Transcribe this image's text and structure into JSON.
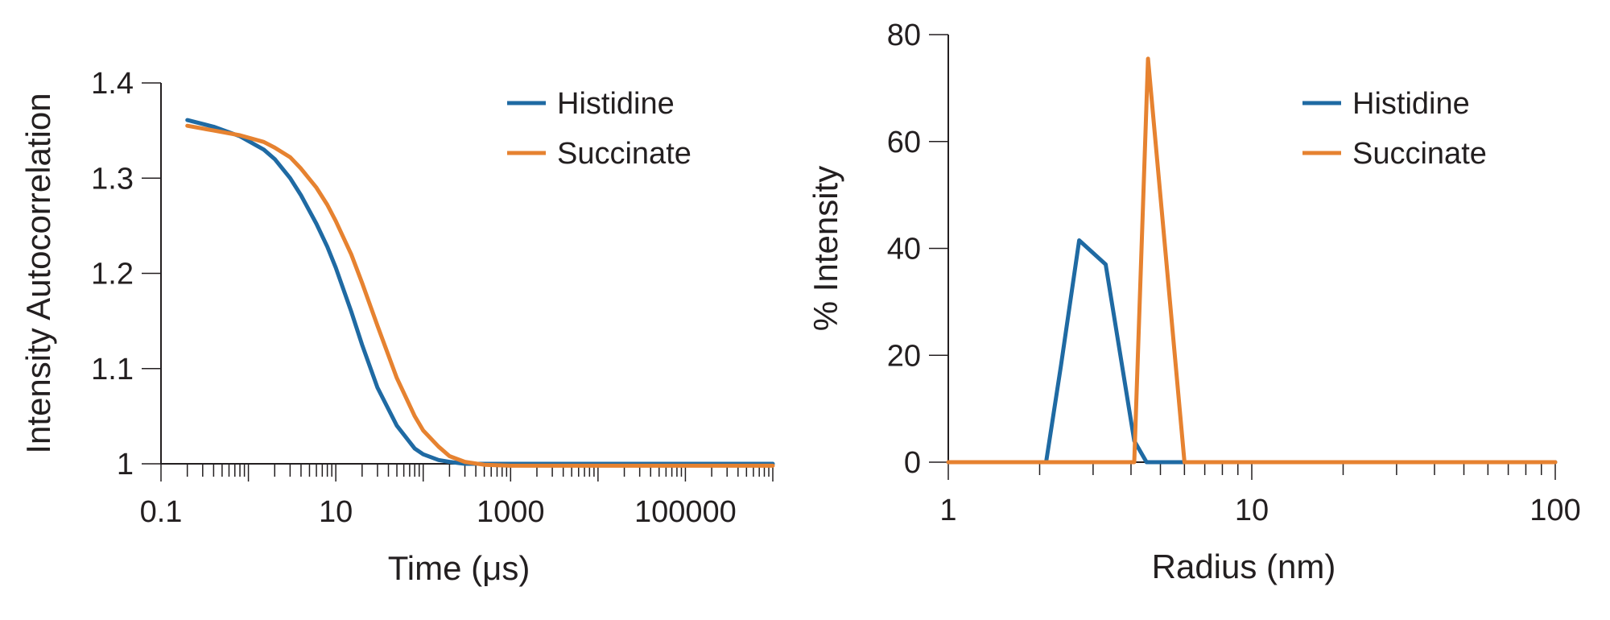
{
  "colors": {
    "histidine": "#1f6aa3",
    "succinate": "#e68230",
    "axis": "#231f20"
  },
  "chart_data": [
    {
      "type": "line",
      "xlabel": "Time (μs)",
      "ylabel": "Intensity Autocorrelation",
      "xscale": "log",
      "xlim": [
        0.1,
        1000000
      ],
      "ylim": [
        1.0,
        1.4
      ],
      "x_ticks": [
        0.1,
        10,
        1000,
        100000
      ],
      "x_tick_labels": [
        "0.1",
        "10",
        "1000",
        "100000"
      ],
      "y_ticks": [
        1.0,
        1.1,
        1.2,
        1.3,
        1.4
      ],
      "y_tick_labels": [
        "1",
        "1.1",
        "1.2",
        "1.3",
        "1.4"
      ],
      "grid": false,
      "legend_position": "top-right",
      "series": [
        {
          "name": "Histidine",
          "color": "#1f6aa3",
          "x": [
            0.2,
            0.4,
            0.8,
            1.5,
            2,
            3,
            4,
            6,
            8,
            10,
            15,
            20,
            30,
            50,
            80,
            100,
            150,
            200,
            300,
            500,
            1000,
            10000,
            100000,
            1000000
          ],
          "y": [
            1.361,
            1.354,
            1.344,
            1.33,
            1.32,
            1.3,
            1.282,
            1.252,
            1.228,
            1.206,
            1.16,
            1.125,
            1.08,
            1.04,
            1.016,
            1.01,
            1.004,
            1.002,
            1.0,
            1.0,
            1.0,
            1.0,
            1.0,
            1.0
          ]
        },
        {
          "name": "Succinate",
          "color": "#e68230",
          "x": [
            0.2,
            0.4,
            0.8,
            1.5,
            2,
            3,
            4,
            6,
            8,
            10,
            15,
            20,
            30,
            50,
            80,
            100,
            150,
            200,
            300,
            500,
            1000,
            10000,
            100000,
            1000000
          ],
          "y": [
            1.355,
            1.35,
            1.345,
            1.338,
            1.332,
            1.322,
            1.31,
            1.29,
            1.272,
            1.255,
            1.22,
            1.19,
            1.145,
            1.09,
            1.05,
            1.035,
            1.018,
            1.008,
            1.002,
            0.999,
            0.998,
            0.998,
            0.998,
            0.998
          ]
        }
      ]
    },
    {
      "type": "line",
      "xlabel": "Radius (nm)",
      "ylabel": "% Intensity",
      "xscale": "log",
      "xlim": [
        1,
        100
      ],
      "ylim": [
        0,
        80
      ],
      "x_ticks": [
        1,
        10,
        100
      ],
      "x_tick_labels": [
        "1",
        "10",
        "100"
      ],
      "y_ticks": [
        0,
        20,
        40,
        60,
        80
      ],
      "y_tick_labels": [
        "0",
        "20",
        "40",
        "60",
        "80"
      ],
      "grid": false,
      "legend_position": "top-right",
      "series": [
        {
          "name": "Histidine",
          "color": "#1f6aa3",
          "x": [
            1,
            2.1,
            2.35,
            2.7,
            3.3,
            4.1,
            4.5,
            6.0,
            10,
            100
          ],
          "y": [
            0,
            0,
            18,
            41.5,
            37,
            4,
            0,
            0,
            0,
            0
          ]
        },
        {
          "name": "Succinate",
          "color": "#e68230",
          "x": [
            1,
            4.1,
            4.55,
            6.0,
            10,
            100
          ],
          "y": [
            0,
            0,
            75.5,
            0,
            0,
            0
          ]
        }
      ]
    }
  ]
}
